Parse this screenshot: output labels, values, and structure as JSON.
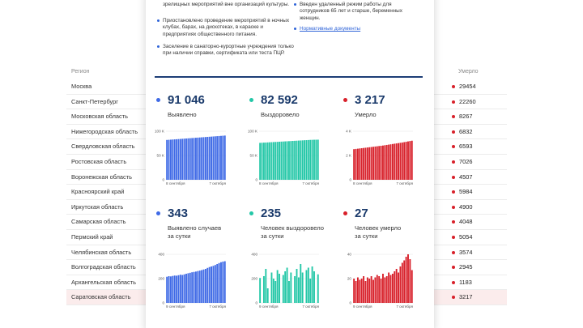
{
  "table": {
    "header_region": "Регион",
    "header_deaths": "Умерло",
    "rows": [
      {
        "region": "Москва",
        "deaths": "29454"
      },
      {
        "region": "Санкт-Петербург",
        "deaths": "22260"
      },
      {
        "region": "Московская область",
        "deaths": "8267"
      },
      {
        "region": "Нижегородская область",
        "deaths": "6832"
      },
      {
        "region": "Свердловская область",
        "deaths": "6593"
      },
      {
        "region": "Ростовская область",
        "deaths": "7026"
      },
      {
        "region": "Воронежская область",
        "deaths": "4507"
      },
      {
        "region": "Красноярский край",
        "deaths": "5984"
      },
      {
        "region": "Иркутская область",
        "deaths": "4900"
      },
      {
        "region": "Самарская область",
        "deaths": "4048"
      },
      {
        "region": "Пермский край",
        "deaths": "5054"
      },
      {
        "region": "Челябинская область",
        "deaths": "3574"
      },
      {
        "region": "Волгоградская область",
        "deaths": "2945"
      },
      {
        "region": "Архангельская область",
        "deaths": "1183"
      },
      {
        "region": "Саратовская область",
        "deaths": "3217"
      }
    ]
  },
  "notes_left": [
    "зрелищных мероприятий вне организаций культуры.",
    "Приостановлено проведение мероприятий в ночных клубах, барах, на дискотеках, в караоке и предприятиях общественного питания.",
    "Заселение в санаторно-курортные учреждения только при наличии справки, сертификата или теста ПЦР."
  ],
  "notes_right": [
    "Введен удаленный режим работы для сотрудников 65 лет и старше, беременных женщин."
  ],
  "notes_link": "Нормативные документы",
  "colors": {
    "blue": "#3f6ae6",
    "green": "#23c7a7",
    "red": "#d8202a",
    "navy": "#1a3a6b"
  },
  "stats": [
    {
      "value": "91 046",
      "label": "Выявлено",
      "color": "#3f6ae6"
    },
    {
      "value": "82 592",
      "label": "Выздоровело",
      "color": "#23c7a7"
    },
    {
      "value": "3 217",
      "label": "Умерло",
      "color": "#d8202a"
    },
    {
      "value": "343",
      "label_line1": "Выявлено случаев",
      "label_line2": "за сутки",
      "color": "#3f6ae6"
    },
    {
      "value": "235",
      "label_line1": "Человек выздоровело",
      "label_line2": "за сутки",
      "color": "#23c7a7"
    },
    {
      "value": "27",
      "label_line1": "Человек умерло",
      "label_line2": "за сутки",
      "color": "#d8202a"
    }
  ],
  "chart_data": [
    {
      "type": "bar",
      "title": "Выявлено",
      "x_start": "8 сентября",
      "x_end": "7 октября",
      "ticks": [
        "100 K",
        "50 K",
        "0"
      ],
      "ylim": [
        0,
        100000
      ],
      "values": [
        82000,
        82300,
        82600,
        82900,
        83200,
        83500,
        83800,
        84100,
        84400,
        84700,
        85000,
        85300,
        85600,
        85900,
        86200,
        86500,
        86800,
        87100,
        87400,
        87700,
        88000,
        88300,
        88600,
        88900,
        89200,
        89500,
        89800,
        90100,
        90400,
        90700,
        91046
      ]
    },
    {
      "type": "bar",
      "title": "Выздоровело",
      "x_start": "8 сентября",
      "x_end": "7 октября",
      "ticks": [
        "100 K",
        "50 K",
        "0"
      ],
      "ylim": [
        0,
        100000
      ],
      "values": [
        76000,
        76250,
        76500,
        76700,
        76950,
        77200,
        77400,
        77650,
        77900,
        78100,
        78350,
        78600,
        78800,
        79050,
        79300,
        79500,
        79750,
        80000,
        80200,
        80450,
        80700,
        80900,
        81150,
        81400,
        81600,
        81850,
        82100,
        82250,
        82400,
        82500,
        82592
      ]
    },
    {
      "type": "bar",
      "title": "Умерло",
      "x_start": "8 сентября",
      "x_end": "7 октября",
      "ticks": [
        "4 K",
        "2 K",
        "0"
      ],
      "ylim": [
        0,
        4000
      ],
      "values": [
        2520,
        2540,
        2560,
        2580,
        2600,
        2620,
        2640,
        2660,
        2680,
        2700,
        2720,
        2740,
        2760,
        2780,
        2800,
        2820,
        2845,
        2870,
        2895,
        2920,
        2945,
        2970,
        2995,
        3020,
        3045,
        3070,
        3100,
        3130,
        3160,
        3190,
        3217
      ]
    },
    {
      "type": "bar",
      "title": "Выявлено случаев за сутки",
      "x_start": "9 сентября",
      "x_end": "7 октября",
      "ticks": [
        "400",
        "200",
        "0"
      ],
      "ylim": [
        0,
        400
      ],
      "values": [
        215,
        220,
        218,
        222,
        225,
        224,
        228,
        232,
        230,
        235,
        240,
        244,
        248,
        252,
        255,
        258,
        262,
        266,
        270,
        275,
        280,
        288,
        295,
        300,
        305,
        312,
        320,
        328,
        335,
        340,
        343
      ]
    },
    {
      "type": "bar",
      "title": "Человек выздоровело за сутки",
      "x_start": "9 сентября",
      "x_end": "7 октября",
      "ticks": [
        "400",
        "200",
        "0"
      ],
      "ylim": [
        0,
        400
      ],
      "values": [
        205,
        0,
        220,
        280,
        120,
        0,
        250,
        200,
        180,
        270,
        240,
        0,
        230,
        260,
        290,
        180,
        250,
        0,
        220,
        280,
        210,
        320,
        250,
        0,
        270,
        290,
        200,
        300,
        260,
        0,
        235
      ]
    },
    {
      "type": "bar",
      "title": "Человек умерло за сутки",
      "x_start": "9 сентября",
      "x_end": "7 октября",
      "ticks": [
        "40",
        "20",
        "0"
      ],
      "ylim": [
        0,
        40
      ],
      "values": [
        20,
        18,
        21,
        19,
        20,
        22,
        18,
        21,
        20,
        22,
        19,
        21,
        23,
        22,
        20,
        24,
        21,
        22,
        25,
        23,
        24,
        26,
        28,
        25,
        30,
        33,
        35,
        38,
        40,
        36,
        27
      ]
    }
  ]
}
